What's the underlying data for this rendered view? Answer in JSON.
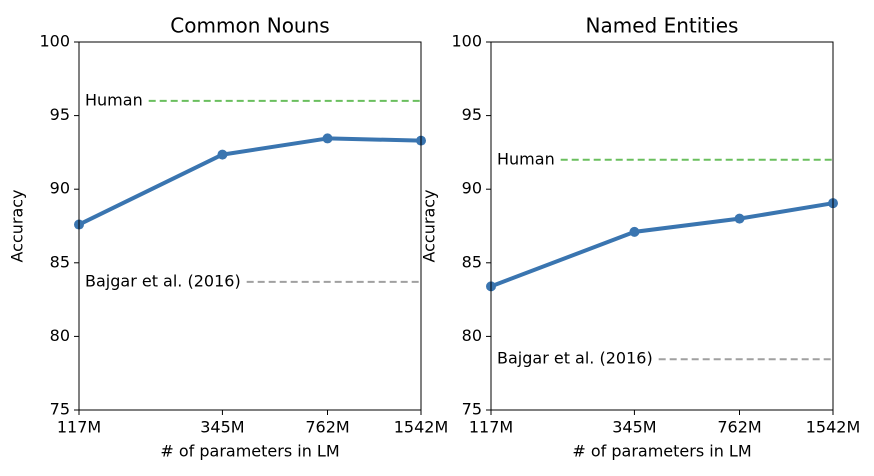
{
  "chart_data": [
    {
      "type": "line",
      "title": "Common Nouns",
      "xlabel": "# of parameters in LM",
      "ylabel": "Accuracy",
      "xscale": "log",
      "x": [
        117,
        345,
        762,
        1542
      ],
      "xlim": [
        117,
        1542
      ],
      "xticks": [
        {
          "value": 117,
          "label": "117M"
        },
        {
          "value": 345,
          "label": "345M"
        },
        {
          "value": 762,
          "label": "762M"
        },
        {
          "value": 1542,
          "label": "1542M"
        }
      ],
      "ylim": [
        75,
        100
      ],
      "yticks": [
        75,
        80,
        85,
        90,
        95,
        100
      ],
      "series": [
        {
          "color": "#3a75b0",
          "values": [
            87.6,
            92.35,
            93.45,
            93.3
          ]
        }
      ],
      "reference_lines": [
        {
          "label": "Human",
          "value": 96,
          "color": "#6abf5e"
        },
        {
          "label": "Bajgar et al. (2016)",
          "value": 83.7,
          "color": "#a0a0a0"
        }
      ]
    },
    {
      "type": "line",
      "title": "Named Entities",
      "xlabel": "# of parameters in LM",
      "ylabel": "Accuracy",
      "xscale": "log",
      "x": [
        117,
        345,
        762,
        1542
      ],
      "xlim": [
        117,
        1542
      ],
      "xticks": [
        {
          "value": 117,
          "label": "117M"
        },
        {
          "value": 345,
          "label": "345M"
        },
        {
          "value": 762,
          "label": "762M"
        },
        {
          "value": 1542,
          "label": "1542M"
        }
      ],
      "ylim": [
        75,
        100
      ],
      "yticks": [
        75,
        80,
        85,
        90,
        95,
        100
      ],
      "series": [
        {
          "color": "#3a75b0",
          "values": [
            83.4,
            87.1,
            88.0,
            89.05
          ]
        }
      ],
      "reference_lines": [
        {
          "label": "Human",
          "value": 92,
          "color": "#6abf5e"
        },
        {
          "label": "Bajgar et al. (2016)",
          "value": 78.45,
          "color": "#a0a0a0"
        }
      ]
    }
  ]
}
